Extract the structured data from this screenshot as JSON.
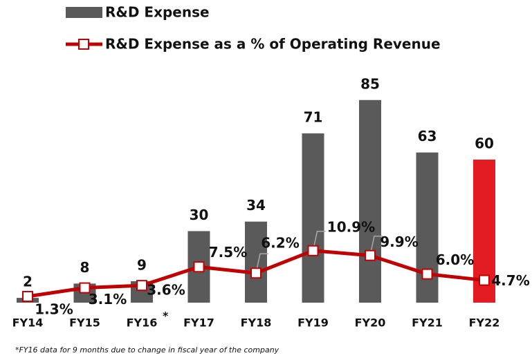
{
  "chart_data": {
    "type": "bar",
    "categories": [
      "FY14",
      "FY15",
      "FY16",
      "FY17",
      "FY18",
      "FY19",
      "FY20",
      "FY21",
      "FY22"
    ],
    "footnote_marker": "*",
    "footnote": "*FY16 data for 9 months due to change in fiscal year of the company",
    "series": [
      {
        "name": "R&D Expense",
        "type": "bar",
        "color": "#5a5a5a",
        "colors": [
          "#5a5a5a",
          "#5a5a5a",
          "#5a5a5a",
          "#5a5a5a",
          "#5a5a5a",
          "#5a5a5a",
          "#5a5a5a",
          "#5a5a5a",
          "#e31b23"
        ],
        "values": [
          2,
          8,
          9,
          30,
          34,
          71,
          85,
          63,
          60
        ]
      },
      {
        "name": "R&D Expense as a % of Operating Revenue",
        "type": "line",
        "axis": "y2",
        "color": "#c00000",
        "values": [
          1.3,
          3.1,
          3.6,
          7.5,
          6.2,
          10.9,
          9.9,
          6.0,
          4.7
        ],
        "value_labels": [
          "1.3%",
          "3.1%",
          "3.6%",
          "7.5%",
          "6.2%",
          "10.9%",
          "9.9%",
          "6.0%",
          "4.7%"
        ]
      }
    ],
    "ylim": [
      0,
      100
    ],
    "y2lim": [
      0,
      50
    ]
  }
}
